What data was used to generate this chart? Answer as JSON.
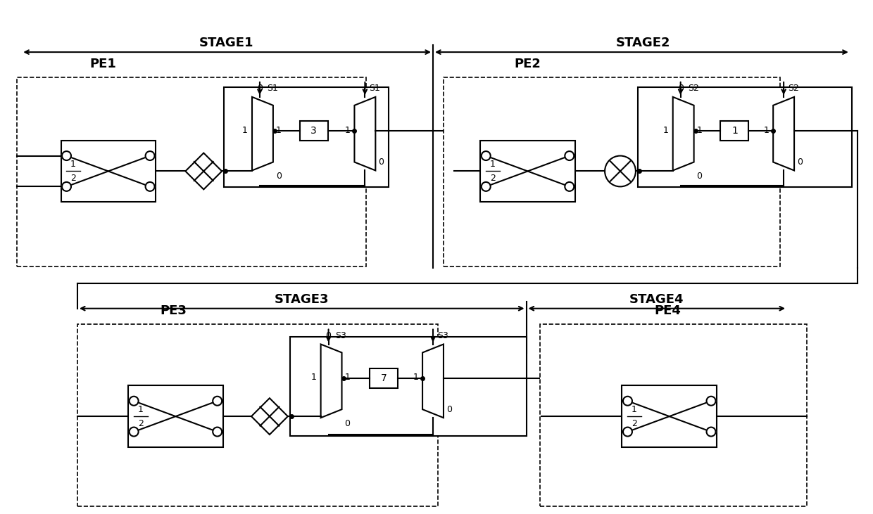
{
  "bg_color": "#ffffff",
  "line_color": "#000000",
  "stage1_label": "STAGE1",
  "stage2_label": "STAGE2",
  "stage3_label": "STAGE3",
  "stage4_label": "STAGE4",
  "pe1_label": "PE1",
  "pe2_label": "PE2",
  "pe3_label": "PE3",
  "pe4_label": "PE4",
  "delay1_label": "3",
  "delay2_label": "1",
  "delay3_label": "7",
  "s1_label": "S1",
  "s2_label": "S2",
  "s3_label": "S3"
}
